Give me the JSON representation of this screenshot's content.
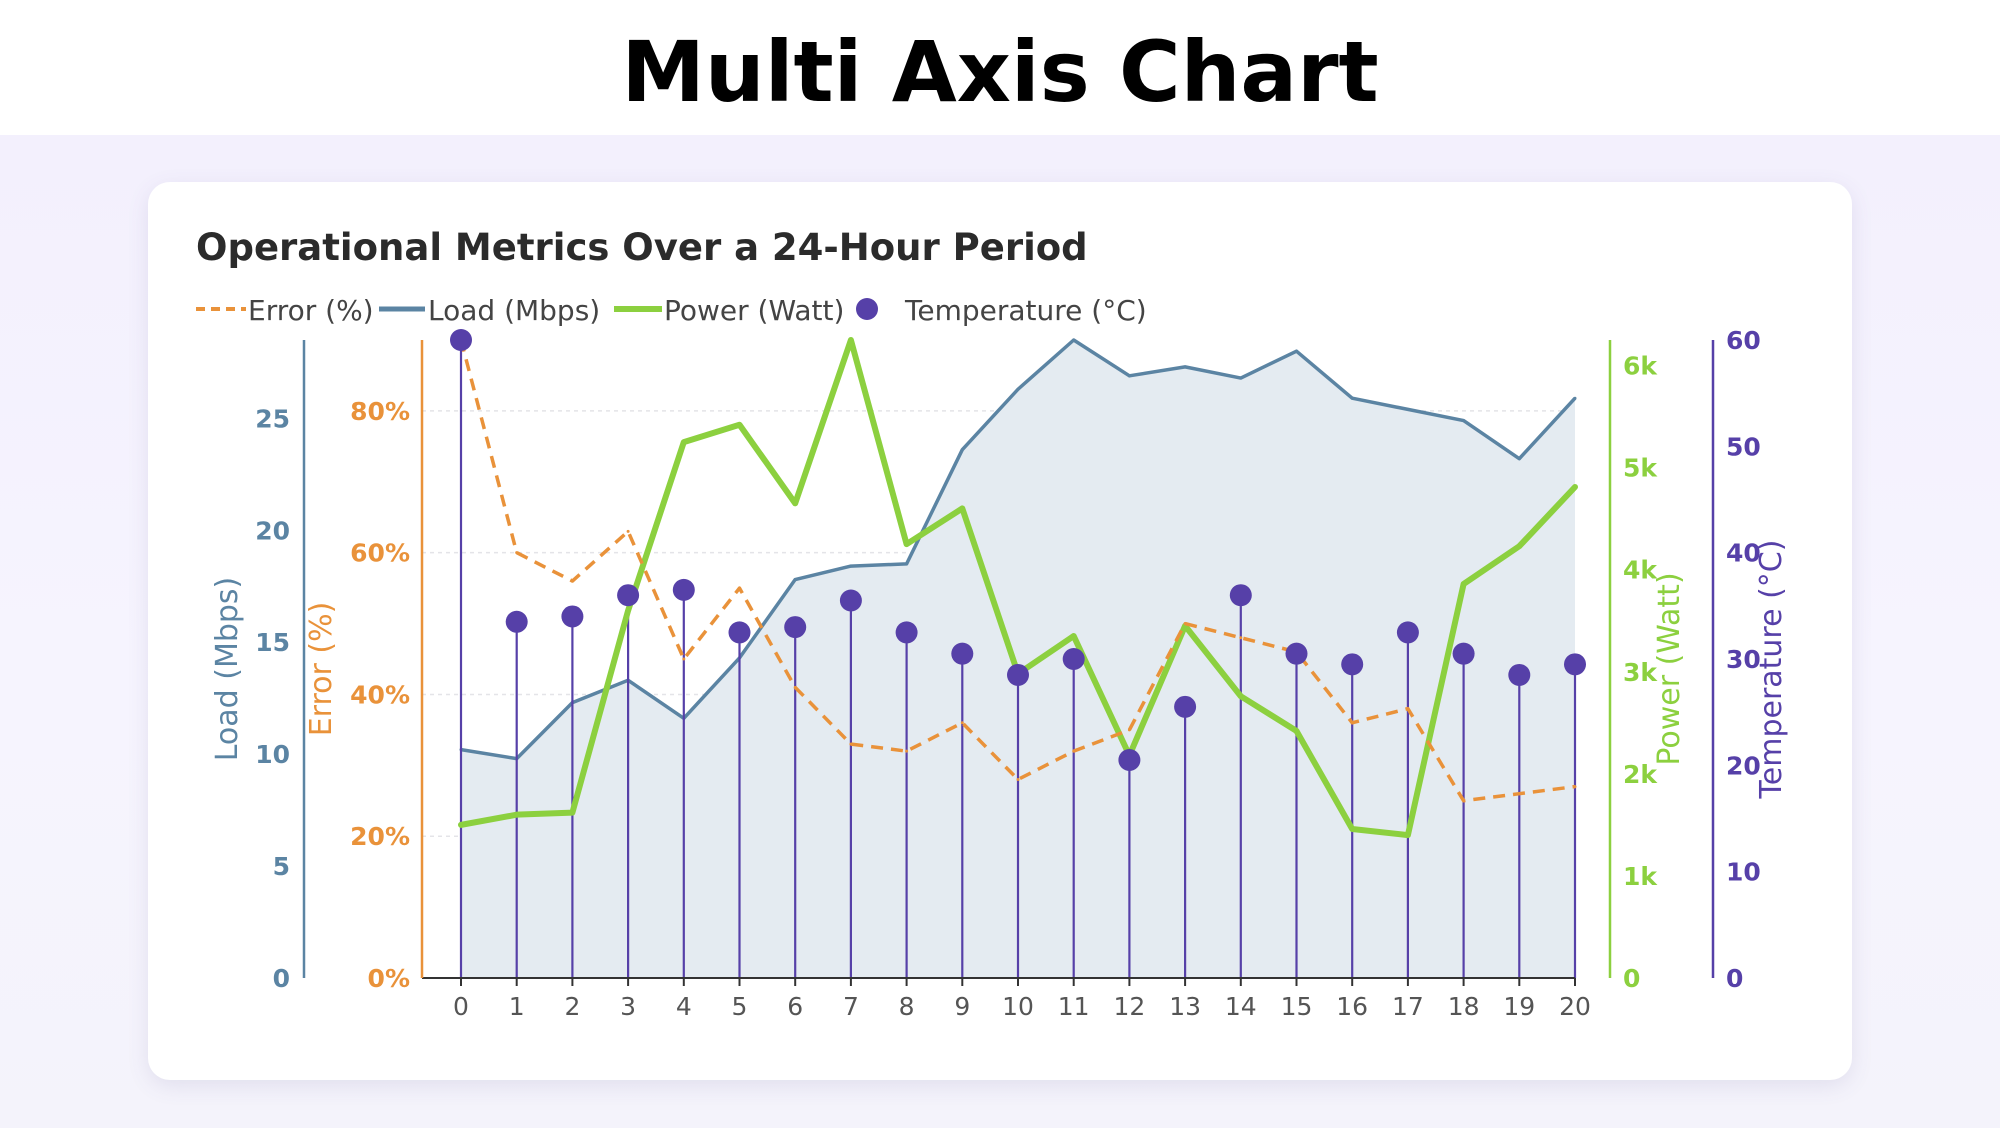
{
  "page": {
    "title": "Multi Axis Chart"
  },
  "chart_data": {
    "type": "line",
    "title": "Operational Metrics Over a 24-Hour Period",
    "x": [
      0,
      1,
      2,
      3,
      4,
      5,
      6,
      7,
      8,
      9,
      10,
      11,
      12,
      13,
      14,
      15,
      16,
      17,
      18,
      19,
      20
    ],
    "grid": true,
    "legend_position": "top-left",
    "axes": {
      "load": {
        "label": "Load (Mbps)",
        "side": "left",
        "range": [
          0,
          28.5
        ],
        "ticks": [
          "0",
          "5",
          "10",
          "15",
          "20",
          "25"
        ],
        "color": "#5b84a3"
      },
      "error": {
        "label": "Error (%)",
        "side": "left",
        "range": [
          0,
          90
        ],
        "ticks": [
          "0%",
          "20%",
          "40%",
          "60%",
          "80%"
        ],
        "color": "#e9923a"
      },
      "power": {
        "label": "Power (Watt)",
        "side": "right",
        "range": [
          0,
          6250
        ],
        "ticks": [
          "0",
          "1k",
          "2k",
          "3k",
          "4k",
          "5k",
          "6k"
        ],
        "color": "#8cd03f"
      },
      "temp": {
        "label": "Temperature (°C)",
        "side": "right",
        "range": [
          0,
          60
        ],
        "ticks": [
          "0",
          "10",
          "20",
          "30",
          "40",
          "50",
          "60"
        ],
        "color": "#5640a8"
      }
    },
    "series": [
      {
        "name": "Error (%)",
        "type": "dashed-line",
        "axis": "error",
        "color": "#e9923a",
        "values": [
          90,
          60,
          56,
          63,
          45,
          55,
          41,
          33,
          32,
          36,
          28,
          32,
          35,
          50,
          48,
          46,
          36,
          38,
          25,
          26,
          27
        ]
      },
      {
        "name": "Load (Mbps)",
        "type": "area",
        "axis": "load",
        "color": "#5b84a3",
        "values": [
          10.2,
          9.8,
          12.3,
          13.3,
          11.6,
          14.3,
          17.8,
          18.4,
          18.5,
          23.6,
          26.3,
          28.5,
          26.9,
          27.3,
          26.8,
          28.0,
          25.9,
          25.4,
          24.9,
          23.2,
          25.9
        ]
      },
      {
        "name": "Power (Watt)",
        "type": "line",
        "axis": "power",
        "color": "#8cd03f",
        "values": [
          1500,
          1600,
          1620,
          3600,
          5250,
          5420,
          4650,
          6250,
          4250,
          4600,
          2980,
          3350,
          2180,
          3450,
          2760,
          2420,
          1460,
          1400,
          3860,
          4230,
          4810
        ]
      },
      {
        "name": "Temperature (°C)",
        "type": "stem",
        "axis": "temp",
        "color": "#5640a8",
        "values": [
          60,
          33.5,
          34,
          36,
          36.5,
          32.5,
          33,
          35.5,
          32.5,
          30.5,
          28.5,
          30,
          20.5,
          25.5,
          36,
          30.5,
          29.5,
          32.5,
          30.5,
          28.5,
          29.5
        ]
      }
    ]
  }
}
